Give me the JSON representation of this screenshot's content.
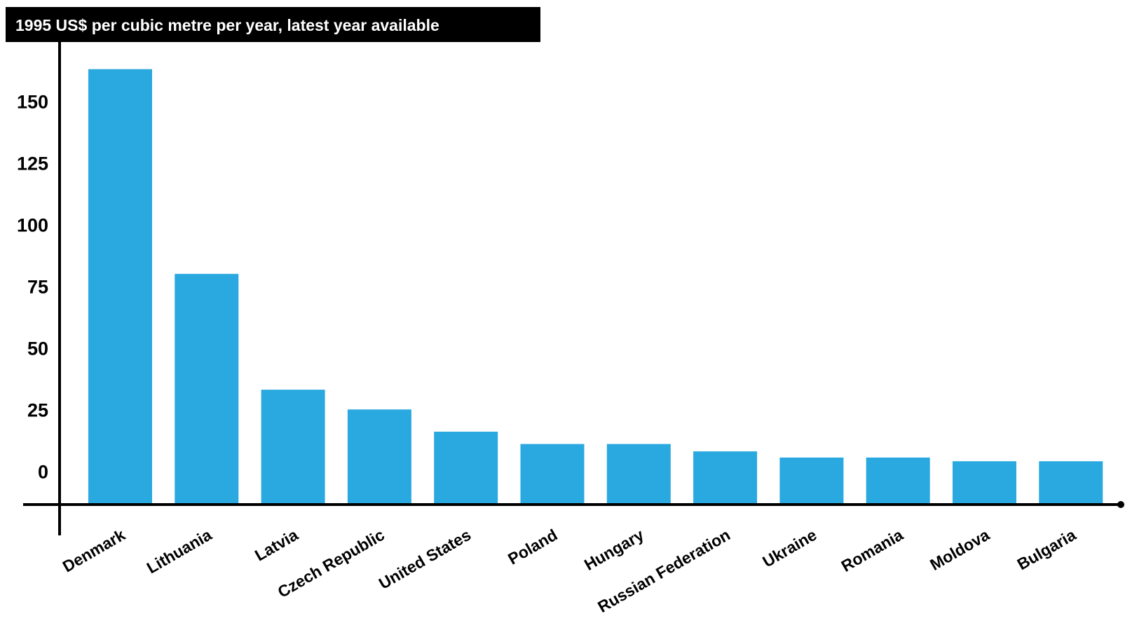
{
  "chart_data": {
    "type": "bar",
    "title": "1995 US$ per cubic metre per year, latest year available",
    "xlabel": "",
    "ylabel": "",
    "categories": [
      "Denmark",
      "Lithuania",
      "Latvia",
      "Czech Republic",
      "United States",
      "Poland",
      "Hungary",
      "Russian Federation",
      "Ukraine",
      "Romania",
      "Moldova",
      "Bulgaria"
    ],
    "values": [
      163,
      80,
      33,
      25,
      16,
      11,
      11,
      8,
      5.5,
      5.5,
      4,
      4
    ],
    "yticks": [
      0,
      25,
      50,
      75,
      100,
      125,
      150
    ],
    "ytick_labels": [
      "0",
      "25",
      "50",
      "75",
      "100",
      "125",
      "150"
    ],
    "ylim": [
      -13,
      174
    ],
    "grid": false,
    "legend": "none",
    "colors": {
      "bar": "#29a9e0",
      "axis": "#000000",
      "title_bg": "#000000",
      "title_text": "#ffffff"
    }
  }
}
